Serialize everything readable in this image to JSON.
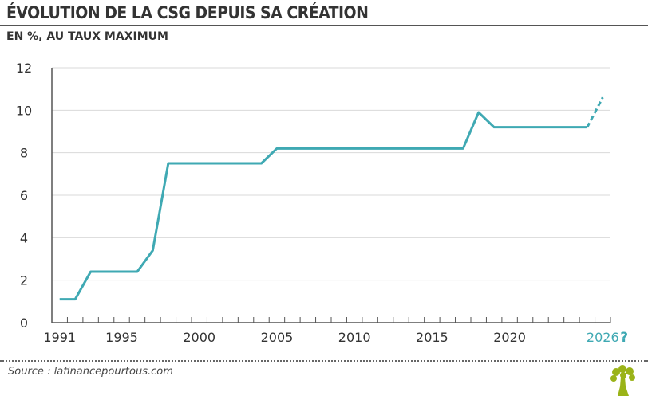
{
  "title": "ÉVOLUTION DE LA CSG DEPUIS SA CRÉATION",
  "subtitle": "EN %, AU TAUX MAXIMUM",
  "source": "Source : lafinancepourtous.com",
  "logo": "tree-logo",
  "colors": {
    "line": "#3fa9b3",
    "text": "#333333",
    "grid": "#d9d9d9",
    "logo": "#9ab318"
  },
  "chart_data": {
    "type": "line",
    "title": "ÉVOLUTION DE LA CSG DEPUIS SA CRÉATION",
    "ylabel": "EN %, AU TAUX MAXIMUM",
    "ylim": [
      0,
      12
    ],
    "yticks": [
      0,
      2,
      4,
      6,
      8,
      10,
      12
    ],
    "xlim": [
      1990.5,
      2026.5
    ],
    "xtick_labels": [
      "1991",
      "1995",
      "2000",
      "2005",
      "2010",
      "2015",
      "2020"
    ],
    "x_projection_label": "2026",
    "x_projection_mark": "?",
    "grid": true,
    "series": [
      {
        "x": [
          1991,
          1992,
          1993,
          1996,
          1997,
          1998,
          2004,
          2005,
          2017,
          2018,
          2019,
          2025
        ],
        "y": [
          1.1,
          1.1,
          2.4,
          2.4,
          3.4,
          7.5,
          7.5,
          8.2,
          8.2,
          9.9,
          9.2,
          9.2
        ],
        "style": "solid"
      },
      {
        "x": [
          2025,
          2026
        ],
        "y": [
          9.2,
          10.6
        ],
        "style": "dashed"
      }
    ]
  }
}
